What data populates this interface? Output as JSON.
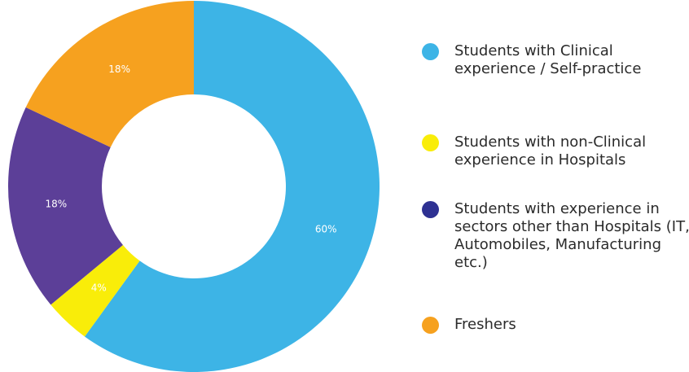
{
  "chart_data": {
    "type": "pie",
    "categories": [
      "Students with Clinical experience / Self-practice",
      "Students with non-Clinical experience in Hospitals",
      "Students with experience in sectors other than Hospitals (IT, Automobiles, Manufacturing etc.)",
      "Freshers"
    ],
    "values": [
      60,
      4,
      18,
      18
    ],
    "value_labels": [
      "60%",
      "4%",
      "18%",
      "18%"
    ],
    "colors": [
      "#3db4e6",
      "#f9ed09",
      "#5c3f98",
      "#f6a11f"
    ],
    "label_colors": [
      "#ffffff",
      "#333333",
      "#ffffff",
      "#ffffff"
    ],
    "donut": true,
    "start_angle": "top",
    "direction": "clockwise",
    "legend_position": "right"
  },
  "legend": [
    {
      "label": "Students with Clinical experience / Self-practice",
      "color": "#3db4e6"
    },
    {
      "label": "Students with non-Clinical experience in Hospitals",
      "color": "#f9ed09"
    },
    {
      "label": "Students with experience in sectors other than Hospitals (IT, Automobiles, Manufacturing etc.)",
      "color": "#2e3192"
    },
    {
      "label": "Freshers",
      "color": "#f6a11f"
    }
  ]
}
